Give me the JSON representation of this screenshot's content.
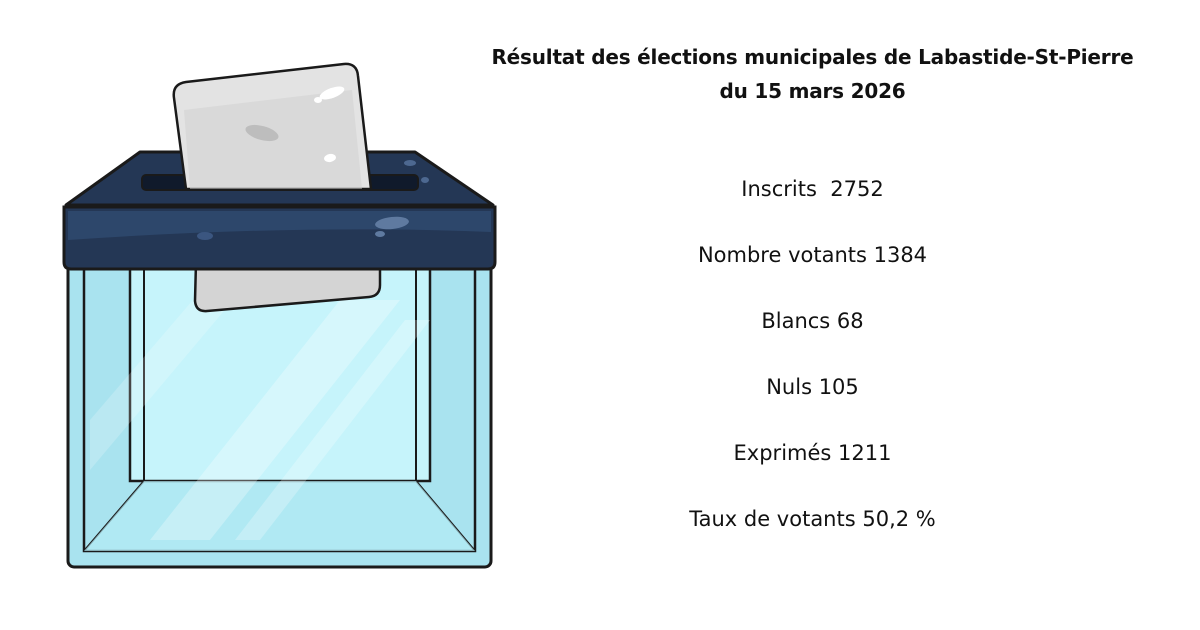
{
  "illustration": {
    "icon": "ballot-box-icon",
    "colors": {
      "lid": "#243755",
      "lid_highlight": "#2f4a70",
      "glass": "#a9e3ef",
      "glass_light": "#c6f4fb",
      "ballot": "#d9d9d9"
    }
  },
  "title": {
    "line1": "Résultat des élections municipales de Labastide-St-Pierre",
    "line2": "du 15 mars 2026"
  },
  "stats": [
    {
      "text": "Inscrits  2752"
    },
    {
      "text": "Nombre votants 1384"
    },
    {
      "text": "Blancs 68"
    },
    {
      "text": "Nuls 105"
    },
    {
      "text": "Exprimés 1211"
    },
    {
      "text": "Taux de votants 50,2 %"
    }
  ]
}
